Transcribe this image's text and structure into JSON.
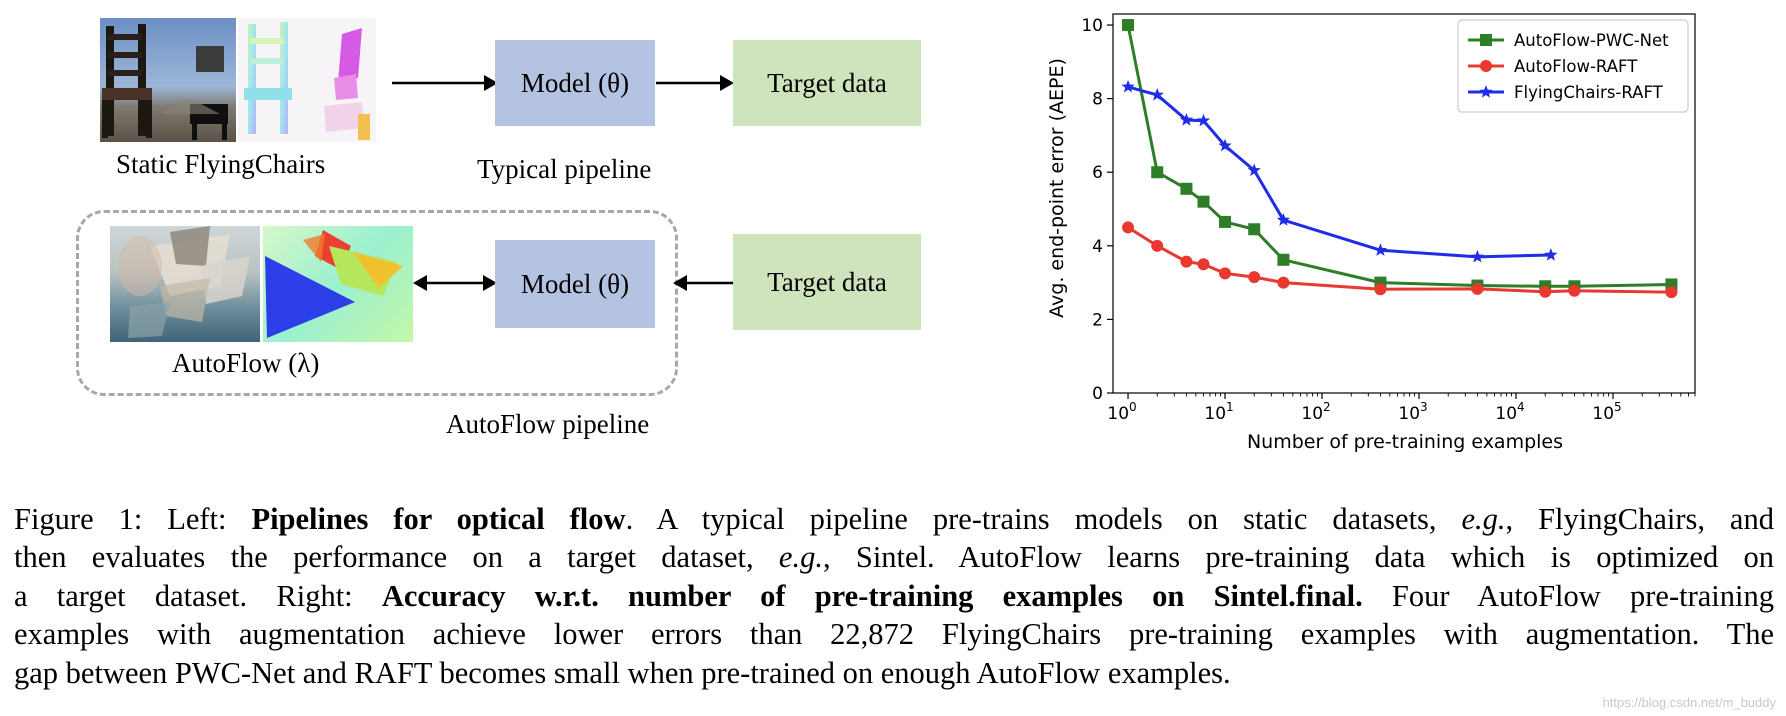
{
  "left_diagram": {
    "top_pipeline": {
      "dataset_label": "Static FlyingChairs",
      "model_label": "Model (θ)",
      "target_label": "Target data",
      "pipeline_label": "Typical pipeline"
    },
    "bottom_pipeline": {
      "dataset_label": "AutoFlow (λ)",
      "model_label": "Model (θ)",
      "target_label": "Target data",
      "pipeline_label": "AutoFlow pipeline"
    },
    "colors": {
      "model_box": "#b4c3e2",
      "target_box": "#cfe3bc",
      "dashed_border": "#a8a8a8"
    }
  },
  "chart_data": {
    "type": "line",
    "title": "",
    "xlabel": "Number of pre-training examples",
    "ylabel": "Avg. end-point error (AEPE)",
    "xscale": "log",
    "xlim": [
      0.7,
      700000
    ],
    "ylim": [
      0,
      10.3
    ],
    "yticks": [
      0,
      2,
      4,
      6,
      8,
      10
    ],
    "xtick_values": [
      1,
      10,
      100,
      1000,
      10000,
      100000
    ],
    "xtick_base": "10",
    "xtick_exponents": [
      "0",
      "1",
      "2",
      "3",
      "4",
      "5"
    ],
    "legend_position": "top-right",
    "series": [
      {
        "name": "AutoFlow-PWC-Net",
        "color": "#2e7d27",
        "marker": "square",
        "x": [
          1,
          2,
          4,
          6,
          10,
          20,
          40,
          400,
          4000,
          20000,
          40000,
          400000
        ],
        "y": [
          10.0,
          6.0,
          5.55,
          5.2,
          4.65,
          4.45,
          3.62,
          3.0,
          2.92,
          2.9,
          2.9,
          2.95
        ]
      },
      {
        "name": "AutoFlow-RAFT",
        "color": "#e8382f",
        "marker": "circle",
        "x": [
          1,
          2,
          4,
          6,
          10,
          20,
          40,
          400,
          4000,
          20000,
          40000,
          400000
        ],
        "y": [
          4.5,
          4.0,
          3.57,
          3.5,
          3.25,
          3.15,
          3.0,
          2.82,
          2.83,
          2.75,
          2.78,
          2.74
        ]
      },
      {
        "name": "FlyingChairs-RAFT",
        "color": "#1f2de8",
        "marker": "star",
        "x": [
          1,
          2,
          4,
          6,
          10,
          20,
          40,
          400,
          4000,
          22872
        ],
        "y": [
          8.32,
          8.1,
          7.42,
          7.4,
          6.72,
          6.05,
          4.7,
          3.88,
          3.7,
          3.75
        ]
      }
    ]
  },
  "caption": {
    "lines": [
      [
        {
          "t": "Figure 1: Left: ",
          "s": "n"
        },
        {
          "t": "Pipelines for optical flow",
          "s": "b"
        },
        {
          "t": ".  A typical pipeline pre-trains models on static datasets, ",
          "s": "n"
        },
        {
          "t": "e.g.",
          "s": "i"
        },
        {
          "t": ", FlyingChairs, and",
          "s": "n"
        }
      ],
      [
        {
          "t": "then evaluates the performance on a target dataset, ",
          "s": "n"
        },
        {
          "t": "e.g.",
          "s": "i"
        },
        {
          "t": ", Sintel.  AutoFlow learns pre-training data which is optimized on",
          "s": "n"
        }
      ],
      [
        {
          "t": "a target dataset.  Right: ",
          "s": "n"
        },
        {
          "t": "Accuracy w.r.t. number of pre-training examples on Sintel.final.",
          "s": "b"
        },
        {
          "t": "  Four AutoFlow pre-training",
          "s": "n"
        }
      ],
      [
        {
          "t": "examples with augmentation achieve lower errors than 22,872 FlyingChairs pre-training examples with augmentation. The",
          "s": "n"
        }
      ],
      [
        {
          "t": "gap between PWC-Net and RAFT becomes small when pre-trained on enough AutoFlow examples.",
          "s": "n"
        }
      ]
    ]
  },
  "watermark": "https://blog.csdn.net/m_buddy"
}
